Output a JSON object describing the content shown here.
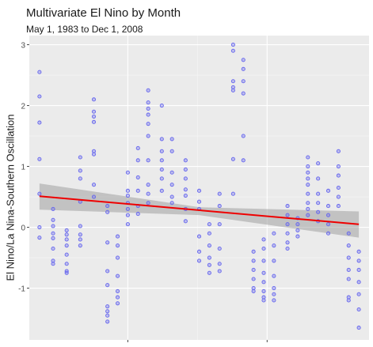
{
  "chart_data": {
    "type": "scatter",
    "title": "Multivariate El Nino by Month",
    "subtitle": "May 1, 1983 to Dec 1, 2008",
    "ylabel": "El Nino/La Nina-Southern Oscillation",
    "xlabel": "",
    "xlim": [
      0,
      100
    ],
    "ylim": [
      -1.85,
      3.15
    ],
    "yticks": [
      -1,
      0,
      1,
      2,
      3
    ],
    "ytick_labels": [
      "-1",
      "0",
      "1",
      "2",
      "3"
    ],
    "xticks_at": [
      29,
      70
    ],
    "xtick_labels": [
      "",
      ""
    ],
    "grid": true,
    "point_color": "#6666ee",
    "trend_color": "#ee0000",
    "ribbon_color": "#999999",
    "trend": {
      "x": [
        3,
        97
      ],
      "y": [
        0.51,
        0.05
      ]
    },
    "ribbon": {
      "x": [
        3,
        50,
        97
      ],
      "lower": [
        0.29,
        0.2,
        -0.17
      ],
      "upper": [
        0.72,
        0.33,
        0.26
      ]
    },
    "points": [
      [
        3,
        2.55
      ],
      [
        3,
        2.15
      ],
      [
        3,
        1.72
      ],
      [
        3,
        1.12
      ],
      [
        3,
        0.55
      ],
      [
        3,
        0.0
      ],
      [
        3,
        -0.17
      ],
      [
        7,
        0.3
      ],
      [
        7,
        0.12
      ],
      [
        7,
        0.02
      ],
      [
        7,
        -0.1
      ],
      [
        7,
        -0.18
      ],
      [
        7,
        -0.35
      ],
      [
        7,
        -0.55
      ],
      [
        7,
        -0.6
      ],
      [
        11,
        -0.05
      ],
      [
        11,
        -0.12
      ],
      [
        11,
        -0.2
      ],
      [
        11,
        -0.3
      ],
      [
        11,
        -0.45
      ],
      [
        11,
        -0.6
      ],
      [
        11,
        -0.72
      ],
      [
        11,
        -0.75
      ],
      [
        15,
        1.15
      ],
      [
        15,
        0.93
      ],
      [
        15,
        0.8
      ],
      [
        15,
        0.42
      ],
      [
        15,
        0.02
      ],
      [
        15,
        -0.12
      ],
      [
        15,
        -0.2
      ],
      [
        15,
        -0.3
      ],
      [
        19,
        2.1
      ],
      [
        19,
        1.9
      ],
      [
        19,
        1.82
      ],
      [
        19,
        1.73
      ],
      [
        19,
        1.25
      ],
      [
        19,
        1.2
      ],
      [
        19,
        0.7
      ],
      [
        19,
        0.5
      ],
      [
        23,
        0.35
      ],
      [
        23,
        0.25
      ],
      [
        23,
        -0.25
      ],
      [
        23,
        -0.72
      ],
      [
        23,
        -0.95
      ],
      [
        23,
        -1.3
      ],
      [
        23,
        -1.38
      ],
      [
        23,
        -1.45
      ],
      [
        23,
        -1.55
      ],
      [
        26,
        -0.15
      ],
      [
        26,
        -0.3
      ],
      [
        26,
        -0.5
      ],
      [
        26,
        -0.8
      ],
      [
        26,
        -1.05
      ],
      [
        26,
        -1.15
      ],
      [
        26,
        -1.25
      ],
      [
        29,
        0.9
      ],
      [
        29,
        0.6
      ],
      [
        29,
        0.52
      ],
      [
        29,
        0.4
      ],
      [
        29,
        0.3
      ],
      [
        29,
        0.2
      ],
      [
        29,
        0.05
      ],
      [
        32,
        1.3
      ],
      [
        32,
        1.1
      ],
      [
        32,
        0.82
      ],
      [
        32,
        0.6
      ],
      [
        32,
        0.35
      ],
      [
        32,
        0.22
      ],
      [
        35,
        2.25
      ],
      [
        35,
        2.05
      ],
      [
        35,
        1.95
      ],
      [
        35,
        1.85
      ],
      [
        35,
        1.7
      ],
      [
        35,
        1.5
      ],
      [
        35,
        1.1
      ],
      [
        35,
        0.7
      ],
      [
        35,
        0.55
      ],
      [
        35,
        0.4
      ],
      [
        39,
        2.0
      ],
      [
        39,
        1.45
      ],
      [
        39,
        1.25
      ],
      [
        39,
        1.1
      ],
      [
        39,
        0.95
      ],
      [
        39,
        0.8
      ],
      [
        39,
        0.6
      ],
      [
        42,
        1.45
      ],
      [
        42,
        1.25
      ],
      [
        42,
        0.9
      ],
      [
        42,
        0.7
      ],
      [
        42,
        0.5
      ],
      [
        42,
        0.4
      ],
      [
        46,
        1.1
      ],
      [
        46,
        0.95
      ],
      [
        46,
        0.8
      ],
      [
        46,
        0.62
      ],
      [
        46,
        0.52
      ],
      [
        46,
        0.3
      ],
      [
        46,
        0.1
      ],
      [
        50,
        0.6
      ],
      [
        50,
        0.42
      ],
      [
        50,
        0.3
      ],
      [
        50,
        -0.15
      ],
      [
        50,
        -0.4
      ],
      [
        50,
        -0.55
      ],
      [
        53,
        0.05
      ],
      [
        53,
        -0.1
      ],
      [
        53,
        -0.3
      ],
      [
        53,
        -0.5
      ],
      [
        53,
        -0.62
      ],
      [
        53,
        -0.75
      ],
      [
        56,
        0.55
      ],
      [
        56,
        0.35
      ],
      [
        56,
        0.05
      ],
      [
        56,
        -0.35
      ],
      [
        56,
        -0.6
      ],
      [
        56,
        -0.72
      ],
      [
        60,
        3.0
      ],
      [
        60,
        2.9
      ],
      [
        60,
        2.4
      ],
      [
        60,
        2.3
      ],
      [
        60,
        2.25
      ],
      [
        60,
        1.12
      ],
      [
        60,
        0.55
      ],
      [
        63,
        2.75
      ],
      [
        63,
        2.6
      ],
      [
        63,
        2.4
      ],
      [
        63,
        2.2
      ],
      [
        63,
        1.5
      ],
      [
        63,
        1.1
      ],
      [
        66,
        -0.4
      ],
      [
        66,
        -0.55
      ],
      [
        66,
        -0.7
      ],
      [
        66,
        -0.85
      ],
      [
        66,
        -1.0
      ],
      [
        66,
        -1.05
      ],
      [
        69,
        -0.2
      ],
      [
        69,
        -0.35
      ],
      [
        69,
        -0.55
      ],
      [
        69,
        -0.75
      ],
      [
        69,
        -0.9
      ],
      [
        69,
        -1.05
      ],
      [
        69,
        -1.15
      ],
      [
        69,
        -1.2
      ],
      [
        72,
        -0.1
      ],
      [
        72,
        -0.3
      ],
      [
        72,
        -0.55
      ],
      [
        72,
        -0.8
      ],
      [
        72,
        -1.0
      ],
      [
        72,
        -1.1
      ],
      [
        72,
        -1.2
      ],
      [
        76,
        0.35
      ],
      [
        76,
        0.2
      ],
      [
        76,
        0.05
      ],
      [
        76,
        -0.1
      ],
      [
        76,
        -0.25
      ],
      [
        76,
        -0.35
      ],
      [
        79,
        0.15
      ],
      [
        79,
        0.05
      ],
      [
        79,
        -0.05
      ],
      [
        79,
        -0.15
      ],
      [
        82,
        1.15
      ],
      [
        82,
        1.0
      ],
      [
        82,
        0.9
      ],
      [
        82,
        0.8
      ],
      [
        82,
        0.7
      ],
      [
        82,
        0.55
      ],
      [
        82,
        0.4
      ],
      [
        82,
        0.3
      ],
      [
        82,
        0.2
      ],
      [
        85,
        1.05
      ],
      [
        85,
        0.8
      ],
      [
        85,
        0.55
      ],
      [
        85,
        0.4
      ],
      [
        85,
        0.25
      ],
      [
        85,
        0.1
      ],
      [
        88,
        0.6
      ],
      [
        88,
        0.35
      ],
      [
        88,
        0.2
      ],
      [
        88,
        0.05
      ],
      [
        88,
        -0.1
      ],
      [
        91,
        1.25
      ],
      [
        91,
        1.0
      ],
      [
        91,
        0.85
      ],
      [
        91,
        0.65
      ],
      [
        91,
        0.5
      ],
      [
        91,
        0.35
      ],
      [
        94,
        -0.1
      ],
      [
        94,
        -0.3
      ],
      [
        94,
        -0.5
      ],
      [
        94,
        -0.7
      ],
      [
        94,
        -0.85
      ],
      [
        94,
        -1.15
      ],
      [
        94,
        -1.2
      ],
      [
        97,
        -0.4
      ],
      [
        97,
        -0.55
      ],
      [
        97,
        -0.7
      ],
      [
        97,
        -0.9
      ],
      [
        97,
        -1.1
      ],
      [
        97,
        -1.35
      ],
      [
        97,
        -1.65
      ]
    ]
  }
}
